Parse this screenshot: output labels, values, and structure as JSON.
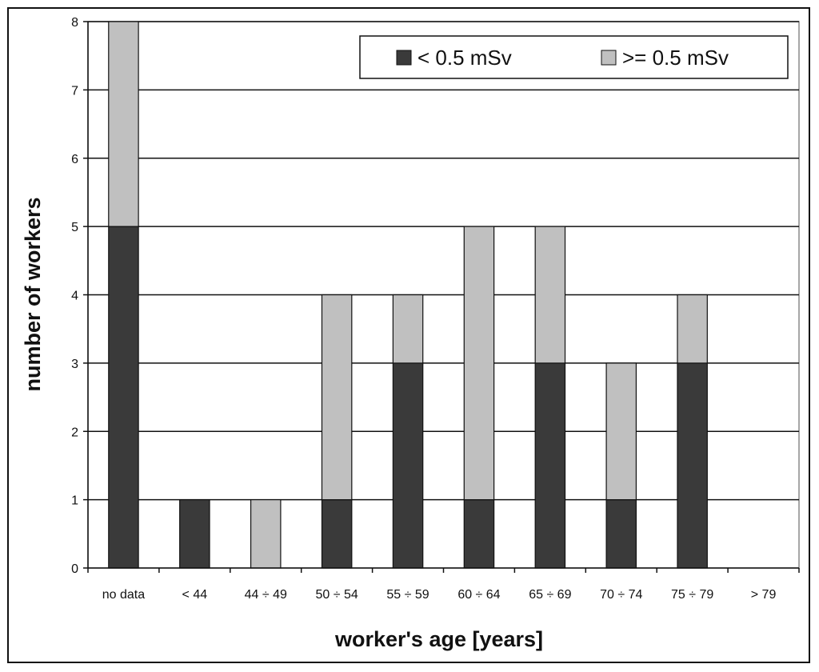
{
  "chart_data": {
    "type": "bar",
    "stacked": true,
    "categories": [
      "no data",
      "< 44",
      "44 ÷ 49",
      "50 ÷ 54",
      "55 ÷ 59",
      "60 ÷ 64",
      "65 ÷ 69",
      "70 ÷ 74",
      "75 ÷ 79",
      "> 79"
    ],
    "series": [
      {
        "name": "< 0.5 mSv",
        "color": "#3a3a3a",
        "values": [
          5,
          1,
          0,
          1,
          3,
          1,
          3,
          1,
          3,
          0
        ]
      },
      {
        "name": ">= 0.5 mSv",
        "color": "#c0c0c0",
        "values": [
          3,
          0,
          1,
          3,
          1,
          4,
          2,
          2,
          1,
          0
        ]
      }
    ],
    "xlabel": "worker's age [years]",
    "ylabel": "number of workers",
    "ylim": [
      0,
      8
    ],
    "yticks": [
      "0",
      "1",
      "2",
      "3",
      "4",
      "5",
      "6",
      "7",
      "8"
    ],
    "grid": true,
    "legend_position": "top-right"
  }
}
